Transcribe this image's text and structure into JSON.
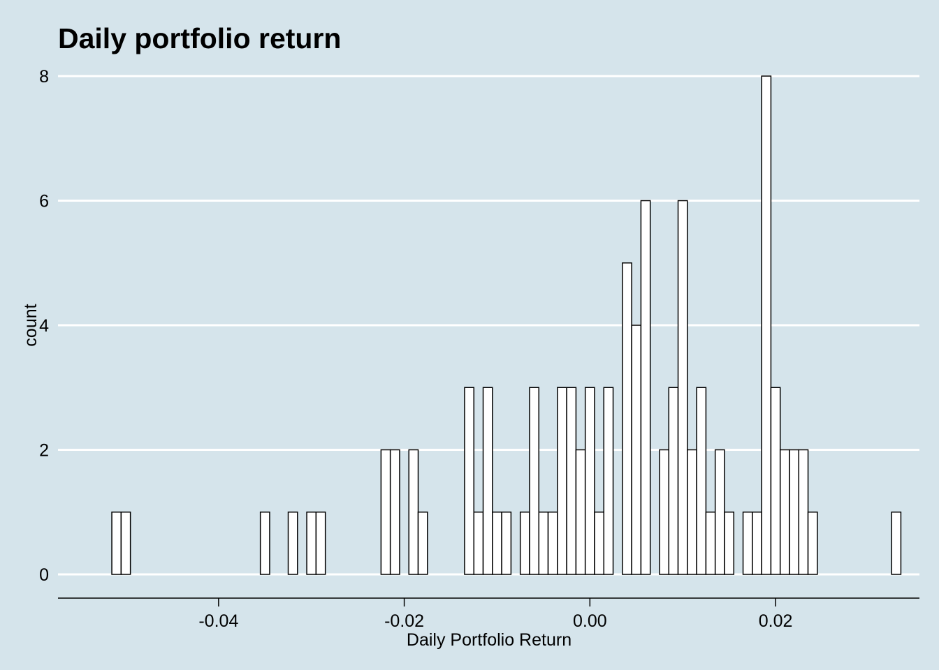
{
  "chart_data": {
    "type": "bar",
    "title": "Daily portfolio return",
    "xlabel": "Daily Portfolio Return",
    "ylabel": "count",
    "xlim": [
      -0.0573,
      0.0355
    ],
    "ylim": [
      0,
      8
    ],
    "x_ticks": [
      {
        "value": -0.04,
        "label": "-0.04"
      },
      {
        "value": -0.02,
        "label": "-0.02"
      },
      {
        "value": 0.0,
        "label": "0.00"
      },
      {
        "value": 0.02,
        "label": "0.02"
      }
    ],
    "y_ticks": [
      {
        "value": 0,
        "label": "0"
      },
      {
        "value": 2,
        "label": "2"
      },
      {
        "value": 4,
        "label": "4"
      },
      {
        "value": 6,
        "label": "6"
      },
      {
        "value": 8,
        "label": "8"
      }
    ],
    "bin_width": 0.001,
    "first_bin_start": -0.0515,
    "counts": [
      1,
      1,
      0,
      0,
      0,
      0,
      0,
      0,
      0,
      0,
      0,
      0,
      0,
      0,
      0,
      0,
      1,
      0,
      0,
      1,
      0,
      1,
      1,
      0,
      0,
      0,
      0,
      0,
      0,
      2,
      2,
      0,
      2,
      1,
      0,
      0,
      0,
      0,
      3,
      1,
      3,
      1,
      1,
      0,
      1,
      3,
      1,
      1,
      3,
      3,
      2,
      3,
      1,
      3,
      0,
      5,
      4,
      6,
      0,
      2,
      3,
      6,
      2,
      3,
      1,
      2,
      1,
      0,
      1,
      1,
      8,
      3,
      2,
      2,
      2,
      1,
      0,
      0,
      0,
      0,
      0,
      0,
      0,
      0,
      1
    ],
    "grid": "horizontal",
    "bar_fill": "#ffffff",
    "bar_stroke": "#000000",
    "background_color": "#d5e4eb",
    "gridline_color": "#ffffff"
  }
}
